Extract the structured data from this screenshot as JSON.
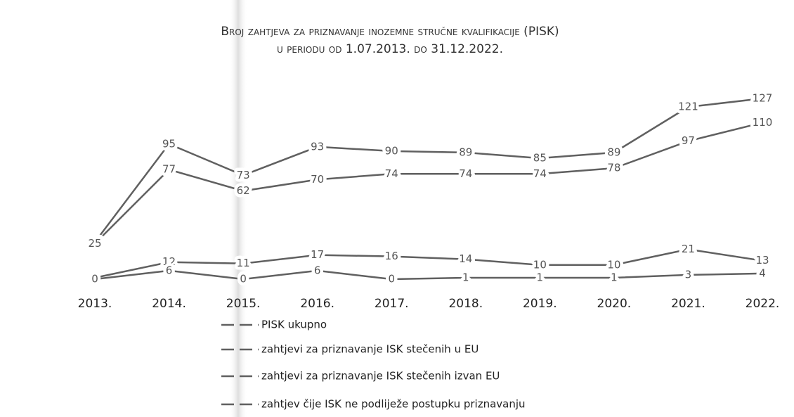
{
  "chart_data": {
    "type": "line",
    "title": "Broj zahtjeva za priznavanje inozemne stručne kvalifikacije (PISK)",
    "subtitle": "u periodu od 1.07.2013. do 31.12.2022.",
    "categories": [
      "2013.",
      "2014.",
      "2015.",
      "2016.",
      "2017.",
      "2018.",
      "2019.",
      "2020.",
      "2021.",
      "2022."
    ],
    "series": [
      {
        "name": "PISK ukupno",
        "color": "#606060",
        "values": [
          26,
          95,
          73,
          93,
          90,
          89,
          85,
          89,
          121,
          127
        ]
      },
      {
        "name": "zahtjevi za priznavanje ISK stečenih u EU",
        "color": "#606060",
        "values": [
          25,
          77,
          62,
          70,
          74,
          74,
          74,
          78,
          97,
          110
        ]
      },
      {
        "name": "zahtjevi za priznavanje ISK stečenih izvan EU",
        "color": "#606060",
        "values": [
          1,
          12,
          11,
          17,
          16,
          14,
          10,
          10,
          21,
          13
        ]
      },
      {
        "name": "zahtjev čije ISK ne podliježe postupku priznavanju",
        "color": "#606060",
        "values": [
          0,
          6,
          0,
          6,
          0,
          1,
          1,
          1,
          3,
          4
        ]
      }
    ]
  }
}
